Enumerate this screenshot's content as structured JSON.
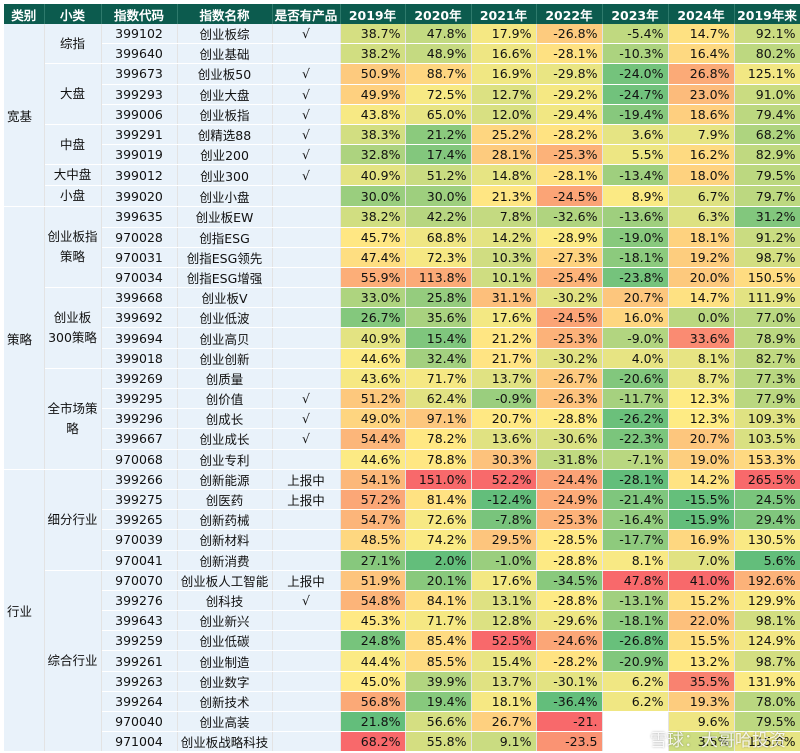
{
  "headers": [
    "类别",
    "小类",
    "指数代码",
    "指数名称",
    "是否有产品",
    "2019年",
    "2020年",
    "2021年",
    "2022年",
    "2023年",
    "2024年",
    "2019年来"
  ],
  "rows": [
    {
      "cat": "宽基",
      "sub": "综指",
      "code": "399102",
      "name": "创业板综",
      "prod": "√",
      "vals": [
        "38.7%",
        "47.8%",
        "17.9%",
        "-26.8%",
        "-5.4%",
        "14.7%",
        "92.1%"
      ]
    },
    {
      "cat": "",
      "sub": "",
      "code": "399640",
      "name": "创业基础",
      "prod": "",
      "vals": [
        "38.2%",
        "48.9%",
        "16.6%",
        "-28.1%",
        "-10.3%",
        "16.4%",
        "80.2%"
      ]
    },
    {
      "cat": "",
      "sub": "大盘",
      "code": "399673",
      "name": "创业板50",
      "prod": "√",
      "vals": [
        "50.9%",
        "88.7%",
        "16.9%",
        "-29.8%",
        "-24.0%",
        "26.8%",
        "125.1%"
      ]
    },
    {
      "cat": "",
      "sub": "",
      "code": "399293",
      "name": "创业大盘",
      "prod": "√",
      "vals": [
        "49.9%",
        "72.5%",
        "12.7%",
        "-29.2%",
        "-24.7%",
        "23.0%",
        "91.0%"
      ]
    },
    {
      "cat": "",
      "sub": "",
      "code": "399006",
      "name": "创业板指",
      "prod": "√",
      "vals": [
        "43.8%",
        "65.0%",
        "12.0%",
        "-29.4%",
        "-19.4%",
        "18.6%",
        "79.4%"
      ]
    },
    {
      "cat": "",
      "sub": "中盘",
      "code": "399291",
      "name": "创精选88",
      "prod": "√",
      "vals": [
        "38.3%",
        "21.2%",
        "25.2%",
        "-28.2%",
        "3.6%",
        "7.9%",
        "68.2%"
      ]
    },
    {
      "cat": "",
      "sub": "",
      "code": "399019",
      "name": "创业200",
      "prod": "√",
      "vals": [
        "32.8%",
        "17.4%",
        "28.1%",
        "-25.3%",
        "5.5%",
        "16.2%",
        "82.9%"
      ]
    },
    {
      "cat": "",
      "sub": "大中盘",
      "code": "399012",
      "name": "创业300",
      "prod": "√",
      "vals": [
        "40.9%",
        "51.2%",
        "14.8%",
        "-28.1%",
        "-13.4%",
        "18.0%",
        "79.5%"
      ]
    },
    {
      "cat": "",
      "sub": "小盘",
      "code": "399020",
      "name": "创业小盘",
      "prod": "",
      "vals": [
        "30.0%",
        "30.0%",
        "21.3%",
        "-24.5%",
        "8.9%",
        "6.7%",
        "79.7%"
      ]
    },
    {
      "cat": "策略",
      "sub": "创业板指策略",
      "code": "399635",
      "name": "创业板EW",
      "prod": "",
      "vals": [
        "38.2%",
        "42.2%",
        "7.8%",
        "-32.6%",
        "-13.6%",
        "6.3%",
        "31.2%"
      ]
    },
    {
      "cat": "",
      "sub": "",
      "code": "970028",
      "name": "创指ESG",
      "prod": "",
      "vals": [
        "45.7%",
        "68.8%",
        "14.2%",
        "-28.9%",
        "-19.0%",
        "18.1%",
        "91.2%"
      ]
    },
    {
      "cat": "",
      "sub": "",
      "code": "970031",
      "name": "创指ESG领先",
      "prod": "",
      "vals": [
        "47.4%",
        "72.3%",
        "10.3%",
        "-27.3%",
        "-18.1%",
        "19.2%",
        "98.7%"
      ]
    },
    {
      "cat": "",
      "sub": "",
      "code": "970034",
      "name": "创指ESG增强",
      "prod": "",
      "vals": [
        "55.9%",
        "113.8%",
        "10.1%",
        "-25.4%",
        "-23.8%",
        "20.0%",
        "150.5%"
      ]
    },
    {
      "cat": "",
      "sub": "创业板300策略",
      "code": "399668",
      "name": "创业板V",
      "prod": "",
      "vals": [
        "33.0%",
        "25.8%",
        "31.1%",
        "-30.2%",
        "20.7%",
        "14.7%",
        "111.9%"
      ]
    },
    {
      "cat": "",
      "sub": "",
      "code": "399692",
      "name": "创业低波",
      "prod": "",
      "vals": [
        "26.7%",
        "35.6%",
        "17.6%",
        "-24.5%",
        "16.0%",
        "0.0%",
        "77.0%"
      ]
    },
    {
      "cat": "",
      "sub": "",
      "code": "399694",
      "name": "创业高贝",
      "prod": "",
      "vals": [
        "40.9%",
        "15.4%",
        "21.2%",
        "-25.3%",
        "-9.0%",
        "33.6%",
        "78.9%"
      ]
    },
    {
      "cat": "",
      "sub": "",
      "code": "399018",
      "name": "创业创新",
      "prod": "",
      "vals": [
        "44.6%",
        "32.4%",
        "21.7%",
        "-30.2%",
        "4.0%",
        "8.1%",
        "82.7%"
      ]
    },
    {
      "cat": "",
      "sub": "全市场策略",
      "code": "399269",
      "name": "创质量",
      "prod": "",
      "vals": [
        "43.6%",
        "71.7%",
        "13.7%",
        "-26.7%",
        "-20.6%",
        "8.7%",
        "77.3%"
      ]
    },
    {
      "cat": "",
      "sub": "",
      "code": "399295",
      "name": "创价值",
      "prod": "√",
      "vals": [
        "51.2%",
        "62.4%",
        "-0.9%",
        "-26.3%",
        "-11.7%",
        "12.3%",
        "77.9%"
      ]
    },
    {
      "cat": "",
      "sub": "",
      "code": "399296",
      "name": "创成长",
      "prod": "√",
      "vals": [
        "49.0%",
        "97.1%",
        "20.7%",
        "-28.8%",
        "-26.2%",
        "12.3%",
        "109.3%"
      ]
    },
    {
      "cat": "",
      "sub": "",
      "code": "399667",
      "name": "创业成长",
      "prod": "√",
      "vals": [
        "54.4%",
        "78.2%",
        "13.6%",
        "-30.6%",
        "-22.3%",
        "20.7%",
        "103.5%"
      ]
    },
    {
      "cat": "",
      "sub": "",
      "code": "970068",
      "name": "创业专利",
      "prod": "",
      "vals": [
        "44.6%",
        "78.8%",
        "30.3%",
        "-31.8%",
        "-7.1%",
        "19.0%",
        "153.3%"
      ]
    },
    {
      "cat": "行业",
      "sub": "细分行业",
      "code": "399266",
      "name": "创新能源",
      "prod": "上报中",
      "vals": [
        "54.1%",
        "151.0%",
        "52.2%",
        "-24.4%",
        "-28.1%",
        "14.2%",
        "265.5%"
      ]
    },
    {
      "cat": "",
      "sub": "",
      "code": "399275",
      "name": "创医药",
      "prod": "上报中",
      "vals": [
        "57.2%",
        "81.4%",
        "-12.4%",
        "-24.9%",
        "-21.4%",
        "-15.5%",
        "24.5%"
      ]
    },
    {
      "cat": "",
      "sub": "",
      "code": "399265",
      "name": "创新药械",
      "prod": "",
      "vals": [
        "54.7%",
        "72.6%",
        "-7.8%",
        "-25.3%",
        "-16.4%",
        "-15.9%",
        "29.4%"
      ]
    },
    {
      "cat": "",
      "sub": "",
      "code": "970039",
      "name": "创新材料",
      "prod": "",
      "vals": [
        "48.5%",
        "74.2%",
        "29.5%",
        "-28.5%",
        "-17.7%",
        "16.9%",
        "130.5%"
      ]
    },
    {
      "cat": "",
      "sub": "",
      "code": "970041",
      "name": "创新消费",
      "prod": "",
      "vals": [
        "27.1%",
        "2.0%",
        "-1.0%",
        "-28.8%",
        "8.1%",
        "7.0%",
        "5.6%"
      ]
    },
    {
      "cat": "",
      "sub": "综合行业",
      "code": "970070",
      "name": "创业板人工智能",
      "prod": "上报中",
      "vals": [
        "51.9%",
        "20.1%",
        "17.6%",
        "-34.5%",
        "47.8%",
        "41.0%",
        "192.6%"
      ]
    },
    {
      "cat": "",
      "sub": "",
      "code": "399276",
      "name": "创科技",
      "prod": "√",
      "vals": [
        "54.8%",
        "84.1%",
        "13.1%",
        "-28.8%",
        "-13.1%",
        "15.2%",
        "129.9%"
      ]
    },
    {
      "cat": "",
      "sub": "",
      "code": "399643",
      "name": "创业新兴",
      "prod": "",
      "vals": [
        "45.3%",
        "71.7%",
        "12.8%",
        "-29.6%",
        "-18.1%",
        "22.0%",
        "98.1%"
      ]
    },
    {
      "cat": "",
      "sub": "",
      "code": "399259",
      "name": "创业低碳",
      "prod": "",
      "vals": [
        "24.8%",
        "85.4%",
        "52.5%",
        "-24.6%",
        "-26.8%",
        "15.5%",
        "124.9%"
      ]
    },
    {
      "cat": "",
      "sub": "",
      "code": "399261",
      "name": "创业制造",
      "prod": "",
      "vals": [
        "44.4%",
        "85.5%",
        "15.4%",
        "-28.2%",
        "-20.9%",
        "13.2%",
        "98.7%"
      ]
    },
    {
      "cat": "",
      "sub": "",
      "code": "399263",
      "name": "创业数字",
      "prod": "",
      "vals": [
        "45.0%",
        "39.9%",
        "13.7%",
        "-30.1%",
        "6.2%",
        "35.5%",
        "131.9%"
      ]
    },
    {
      "cat": "",
      "sub": "",
      "code": "399264",
      "name": "创新技术",
      "prod": "",
      "vals": [
        "56.8%",
        "19.4%",
        "18.1%",
        "-36.4%",
        "6.2%",
        "19.3%",
        "78.0%"
      ]
    },
    {
      "cat": "",
      "sub": "",
      "code": "970040",
      "name": "创业高装",
      "prod": "",
      "vals": [
        "21.8%",
        "56.6%",
        "26.7%",
        "-21.",
        "",
        "9.6%",
        "79.5%"
      ]
    },
    {
      "cat": "",
      "sub": "",
      "code": "971004",
      "name": "创业板战略科技",
      "prod": "",
      "vals": [
        "68.2%",
        "55.8%",
        "9.1%",
        "-23.5",
        "",
        "3.5%",
        "115.0%"
      ]
    }
  ],
  "watermark": "雪球：大哥哈投资",
  "colors": {
    "header_bg": "#0c5b4e",
    "header_fg": "#ffffff",
    "left_bg": "#e9f2fa",
    "high": "#f8696b",
    "mid": "#ffeb84",
    "low": "#63be7b"
  }
}
